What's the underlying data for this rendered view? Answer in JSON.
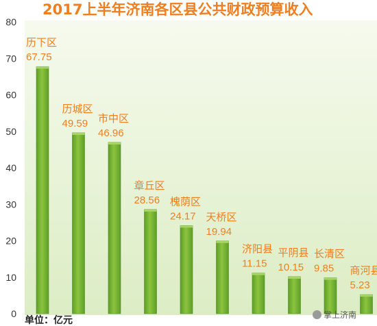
{
  "chart_data": {
    "type": "bar",
    "title": "2017上半年济南各区县公共财政预算收入",
    "categories": [
      "历下区",
      "历城区",
      "市中区",
      "章丘区",
      "槐荫区",
      "天桥区",
      "济阳县",
      "平阴县",
      "长清区",
      "商河县"
    ],
    "values": [
      67.75,
      49.59,
      46.96,
      28.56,
      24.17,
      19.94,
      11.15,
      10.15,
      9.85,
      5.23
    ],
    "value_labels": [
      "67.75",
      "49.59",
      "46.96",
      "28.56",
      "24.17",
      "19.94",
      "11.15",
      "10.15",
      "9.85",
      "5.23"
    ],
    "ylim": [
      0,
      80
    ],
    "yticks": [
      "0",
      "10",
      "20",
      "30",
      "40",
      "50",
      "60",
      "70",
      "80"
    ],
    "ytick_values": [
      0,
      10,
      20,
      30,
      40,
      50,
      60,
      70,
      80
    ],
    "xlabel": "",
    "ylabel": "",
    "grid": false,
    "unit_label": "单位：亿元",
    "colors": {
      "bar": "#5e9e28",
      "bar_highlight": "#8cc43f",
      "background_top": "#f6faee",
      "background_bottom": "#dcedc4",
      "label": "#f07e1f",
      "title": "#f07e1f",
      "axis_text": "#333333"
    }
  },
  "watermark": {
    "text": "掌上济南",
    "icon": "chat-icon"
  }
}
